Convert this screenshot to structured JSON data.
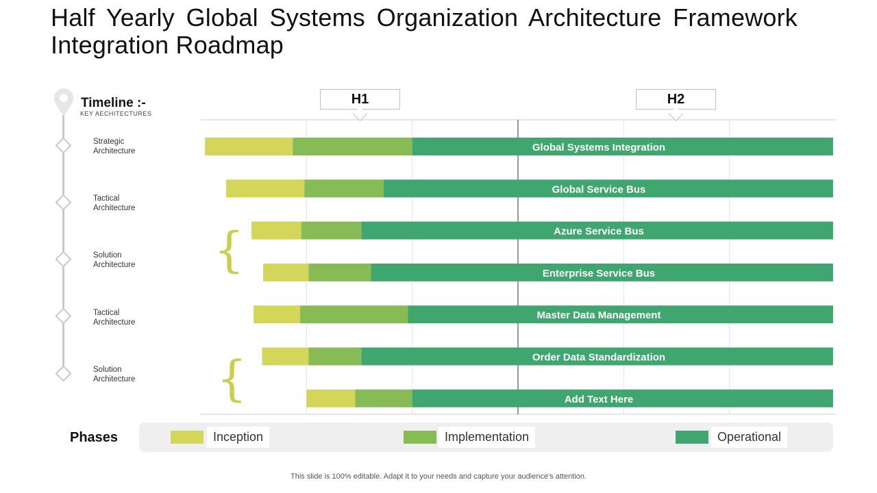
{
  "slide": {
    "title": "Half Yearly Global Systems Organization Architecture Framework Integration Roadmap",
    "footer": "This slide is 100% editable. Adapt it to your needs and capture your audience's attention."
  },
  "timeline": {
    "title": "Timeline :-",
    "subtitle": "KEY AECHITECTURES",
    "items": [
      {
        "line1": "Strategic",
        "line2": "Architecture"
      },
      {
        "line1": "Tactical",
        "line2": "Architecture"
      },
      {
        "line1": "Solution",
        "line2": "Architecture"
      },
      {
        "line1": "Tactical",
        "line2": "Architecture"
      },
      {
        "line1": "Solution",
        "line2": "Architecture"
      }
    ]
  },
  "headers": {
    "h1": "H1",
    "h2": "H2"
  },
  "legend": {
    "title": "Phases",
    "items": [
      {
        "label": "Inception",
        "color": "#d4d65a"
      },
      {
        "label": "Implementation",
        "color": "#86bb55"
      },
      {
        "label": "Operational",
        "color": "#3fa66f"
      }
    ]
  },
  "chart_data": {
    "type": "bar",
    "stacked": true,
    "orientation": "horizontal",
    "xlim": [
      0,
      6
    ],
    "grid_columns": 6,
    "categories": [
      "Global Systems Integration",
      "Global Service Bus",
      "Azure Service Bus",
      "Enterprise Service Bus",
      "Master Data Management",
      "Order Data Standardization",
      "Add Text Here"
    ],
    "series": [
      {
        "name": "Inception",
        "color": "#d4d65a",
        "start": [
          0.04,
          0.24,
          0.48,
          0.59,
          0.5,
          0.58,
          1.0
        ],
        "end": [
          0.87,
          0.98,
          0.95,
          1.02,
          0.94,
          1.02,
          1.46
        ]
      },
      {
        "name": "Implementation",
        "color": "#86bb55",
        "start": [
          0.87,
          0.98,
          0.95,
          1.02,
          0.94,
          1.02,
          1.46
        ],
        "end": [
          2.0,
          1.73,
          1.52,
          1.61,
          1.96,
          1.52,
          2.0
        ]
      },
      {
        "name": "Operational",
        "color": "#3fa66f",
        "start": [
          2.0,
          1.73,
          1.52,
          1.61,
          1.96,
          1.52,
          2.0
        ],
        "end": [
          5.98,
          5.98,
          5.98,
          5.98,
          5.98,
          5.98,
          5.98
        ]
      }
    ]
  }
}
